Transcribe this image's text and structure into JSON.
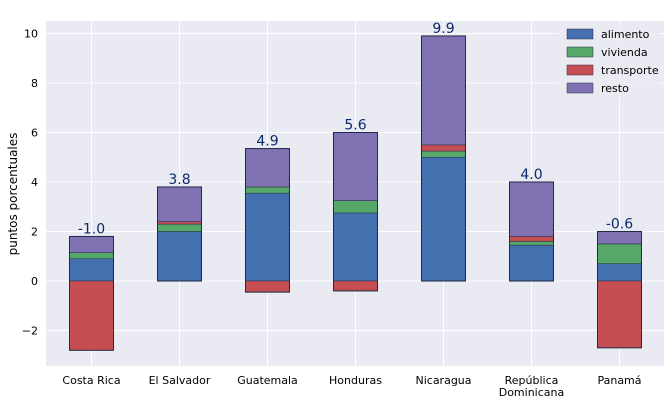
{
  "chart_data": {
    "type": "bar",
    "stacked": true,
    "ylabel": "puntos porcentuales",
    "xlabel": "",
    "ylim": [
      -3.5,
      10.5
    ],
    "yticks": [
      "−2",
      "0",
      "2",
      "4",
      "6",
      "8",
      "10"
    ],
    "ytick_values": [
      -2,
      0,
      2,
      4,
      6,
      8,
      10
    ],
    "categories": [
      [
        "Costa Rica"
      ],
      [
        "El Salvador"
      ],
      [
        "Guatemala"
      ],
      [
        "Honduras"
      ],
      [
        "Nicaragua"
      ],
      [
        "República",
        "Dominicana"
      ],
      [
        "Panamá"
      ]
    ],
    "series": [
      {
        "name": "alimento",
        "color": "#4470b0",
        "values": [
          0.9,
          2.0,
          3.55,
          2.75,
          5.0,
          1.45,
          0.7
        ]
      },
      {
        "name": "vivienda",
        "color": "#55a868",
        "values": [
          0.25,
          0.3,
          0.25,
          0.5,
          0.25,
          0.15,
          0.8
        ]
      },
      {
        "name": "transporte",
        "color": "#c44e52",
        "values": [
          -2.8,
          0.1,
          -0.45,
          -0.4,
          0.25,
          0.2,
          -2.7
        ]
      },
      {
        "name": "resto",
        "color": "#8172b3",
        "values": [
          0.65,
          1.4,
          1.55,
          2.75,
          4.4,
          2.2,
          0.5
        ]
      }
    ],
    "totals": [
      "-1.0",
      "3.8",
      "4.9",
      "5.6",
      "9.9",
      "4.0",
      "-0.6"
    ],
    "grid": true,
    "legend_position": "top-right"
  }
}
